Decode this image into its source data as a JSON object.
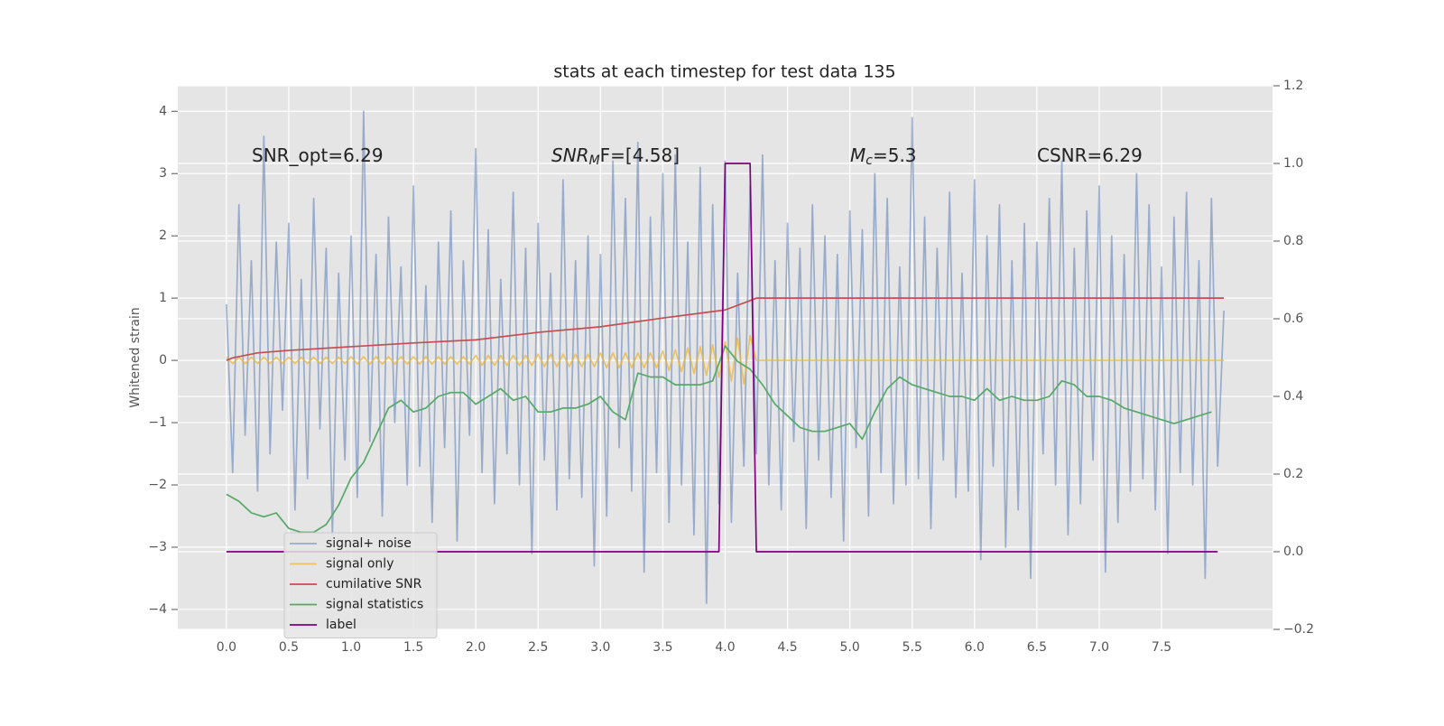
{
  "chart_data": {
    "type": "line",
    "title": "stats at each timestep for test data 135",
    "y_label": "Whitened strain",
    "grid": true,
    "legend": "lower left",
    "xlim": [
      -0.39,
      8.39
    ],
    "ylim": [
      -4.32,
      4.41
    ],
    "y2lim": [
      -0.2,
      1.2
    ],
    "xticks": [
      {
        "value": 0,
        "label": "0.0"
      },
      0.5,
      {
        "value": 1,
        "label": "1.0"
      },
      1.5,
      {
        "value": 2,
        "label": "2.0"
      },
      2.5,
      {
        "value": 3,
        "label": "3.0"
      },
      3.5,
      {
        "value": 4,
        "label": "4.0"
      },
      4.5,
      {
        "value": 5,
        "label": "5.0"
      },
      5.5,
      {
        "value": 6,
        "label": "6.0"
      },
      6.5,
      {
        "value": 7,
        "label": "7.0"
      },
      7.5
    ],
    "yticks": [
      {
        "value": -4,
        "label": "−4"
      },
      {
        "value": -3,
        "label": "−3"
      },
      {
        "value": -2,
        "label": "−2"
      },
      {
        "value": -1,
        "label": "−1"
      },
      0,
      1,
      2,
      3,
      4
    ],
    "y2ticks": [
      {
        "value": -0.2,
        "label": "−0.2"
      },
      {
        "value": 0,
        "label": "0.0"
      },
      0.2,
      0.4,
      0.6,
      0.8,
      {
        "value": 1,
        "label": "1.0"
      },
      1.2
    ],
    "annotations": [
      {
        "parts": [
          "SNR_opt=6.29"
        ]
      },
      {
        "parts": [
          "SNR",
          "M",
          "F=[4.58]"
        ]
      },
      {
        "parts": [
          "M",
          "c",
          "=5.3"
        ]
      },
      {
        "parts": [
          "CSNR=6.29"
        ]
      }
    ],
    "x": [
      0,
      0.05,
      0.1,
      0.15,
      0.2,
      0.25,
      0.3,
      0.35,
      0.4,
      0.45,
      0.5,
      0.55,
      0.6,
      0.65,
      0.7,
      0.75,
      0.8,
      0.85,
      0.9,
      0.95,
      1,
      1.05,
      1.1,
      1.15,
      1.2,
      1.25,
      1.3,
      1.35,
      1.4,
      1.45,
      1.5,
      1.55,
      1.6,
      1.65,
      1.7,
      1.75,
      1.8,
      1.85,
      1.9,
      1.95,
      2,
      2.05,
      2.1,
      2.15,
      2.2,
      2.25,
      2.3,
      2.35,
      2.4,
      2.45,
      2.5,
      2.55,
      2.6,
      2.65,
      2.7,
      2.75,
      2.8,
      2.85,
      2.9,
      2.95,
      3,
      3.05,
      3.1,
      3.15,
      3.2,
      3.25,
      3.3,
      3.35,
      3.4,
      3.45,
      3.5,
      3.55,
      3.6,
      3.65,
      3.7,
      3.75,
      3.8,
      3.85,
      3.9,
      3.95,
      4,
      4.05,
      4.1,
      4.15,
      4.2,
      4.25,
      4.3,
      4.35,
      4.4,
      4.45,
      4.5,
      4.55,
      4.6,
      4.65,
      4.7,
      4.75,
      4.8,
      4.85,
      4.9,
      4.95,
      5,
      5.05,
      5.1,
      5.15,
      5.2,
      5.25,
      5.3,
      5.35,
      5.4,
      5.45,
      5.5,
      5.55,
      5.6,
      5.65,
      5.7,
      5.75,
      5.8,
      5.85,
      5.9,
      5.95,
      6,
      6.05,
      6.1,
      6.15,
      6.2,
      6.25,
      6.3,
      6.35,
      6.4,
      6.45,
      6.5,
      6.55,
      6.6,
      6.65,
      6.7,
      6.75,
      6.8,
      6.85,
      6.9,
      6.95,
      7,
      7.05,
      7.1,
      7.15,
      7.2,
      7.25,
      7.3,
      7.35,
      7.4,
      7.45,
      7.5,
      7.55,
      7.6,
      7.65,
      7.7,
      7.75,
      7.8,
      7.85,
      7.9,
      7.95,
      8
    ],
    "series": [
      {
        "name": "signal+ noise",
        "color": "#4c72b0",
        "opacity": 0.5,
        "axis": "y",
        "values": [
          0.9,
          -1.8,
          2.5,
          -1.2,
          1.6,
          -2.1,
          3.6,
          -1.5,
          1.9,
          -0.8,
          2.2,
          -2.4,
          1.3,
          -1.9,
          2.6,
          -1.1,
          1.8,
          -2.8,
          1.4,
          -1.6,
          2.0,
          -2.2,
          4.0,
          -1.3,
          1.7,
          -2.5,
          2.3,
          -1.0,
          1.5,
          -2.0,
          2.8,
          -1.7,
          1.2,
          -2.6,
          1.9,
          -1.4,
          2.4,
          -2.9,
          1.6,
          -1.2,
          3.4,
          -1.8,
          2.1,
          -2.3,
          1.3,
          -1.5,
          2.7,
          -2.0,
          1.8,
          -3.1,
          2.2,
          -1.6,
          1.4,
          -2.4,
          2.9,
          -1.9,
          1.6,
          -2.2,
          2.0,
          -3.3,
          1.7,
          -2.5,
          3.2,
          -1.4,
          2.6,
          -2.1,
          3.5,
          -3.4,
          2.3,
          -1.8,
          3.0,
          -2.6,
          3.3,
          -2.0,
          1.9,
          -2.8,
          3.1,
          -3.9,
          2.5,
          -2.3,
          3.2,
          -2.6,
          1.4,
          -1.7,
          2.8,
          -1.5,
          3.3,
          -2.0,
          1.6,
          -2.4,
          2.2,
          -1.3,
          1.8,
          -2.7,
          2.5,
          -1.6,
          2.0,
          -2.2,
          1.7,
          -2.9,
          2.4,
          -1.4,
          2.1,
          -2.5,
          3.0,
          -1.8,
          2.6,
          -2.3,
          1.5,
          -2.0,
          3.9,
          -1.9,
          2.3,
          -2.7,
          1.8,
          -1.6,
          2.7,
          -2.2,
          1.4,
          -2.1,
          2.9,
          -3.2,
          2.0,
          -1.7,
          2.5,
          -3.0,
          1.6,
          -2.4,
          2.2,
          -3.5,
          1.9,
          -1.5,
          2.6,
          -2.0,
          3.2,
          -2.8,
          1.8,
          -2.3,
          2.4,
          -1.6,
          2.8,
          -3.4,
          2.0,
          -2.6,
          1.7,
          -2.1,
          3.0,
          -1.9,
          2.5,
          -2.4,
          1.5,
          -3.1,
          2.3,
          -1.8,
          2.7,
          -2.0,
          1.6,
          -3.5,
          2.6,
          -1.7,
          0.8
        ]
      },
      {
        "name": "signal only",
        "color": "#f0b429",
        "opacity": 0.7,
        "axis": "y",
        "values": [
          0.05,
          -0.05,
          0.05,
          -0.05,
          0.05,
          -0.05,
          0.05,
          -0.05,
          0.05,
          -0.05,
          0.05,
          -0.05,
          0.05,
          -0.05,
          0.05,
          -0.05,
          0.05,
          -0.05,
          0.05,
          -0.05,
          0.06,
          -0.06,
          0.06,
          -0.06,
          0.06,
          -0.06,
          0.06,
          -0.06,
          0.06,
          -0.06,
          0.06,
          -0.06,
          0.06,
          -0.06,
          0.06,
          -0.06,
          0.06,
          -0.06,
          0.06,
          -0.06,
          0.08,
          -0.08,
          0.08,
          -0.08,
          0.08,
          -0.08,
          0.08,
          -0.08,
          0.08,
          -0.08,
          0.1,
          -0.1,
          0.1,
          -0.1,
          0.1,
          -0.1,
          0.1,
          -0.1,
          0.1,
          -0.1,
          0.12,
          -0.12,
          0.12,
          -0.12,
          0.12,
          -0.12,
          0.12,
          -0.12,
          0.12,
          -0.12,
          0.15,
          -0.16,
          0.17,
          -0.18,
          0.2,
          -0.21,
          0.22,
          -0.24,
          0.25,
          -0.27,
          0.3,
          -0.33,
          0.36,
          -0.38,
          0.4,
          0,
          0,
          0,
          0,
          0,
          0,
          0,
          0,
          0,
          0,
          0,
          0,
          0,
          0,
          0,
          0,
          0,
          0,
          0,
          0,
          0,
          0,
          0,
          0,
          0,
          0,
          0,
          0,
          0,
          0,
          0,
          0,
          0,
          0,
          0,
          0,
          0,
          0,
          0,
          0,
          0,
          0,
          0,
          0,
          0,
          0,
          0,
          0,
          0,
          0,
          0,
          0,
          0,
          0,
          0,
          0,
          0,
          0,
          0,
          0,
          0,
          0,
          0,
          0,
          0,
          0,
          0,
          0,
          0,
          0,
          0,
          0,
          0,
          0,
          0,
          0
        ]
      },
      {
        "name": "cumilative SNR",
        "color": "#c44e52",
        "axis": "y",
        "x": [
          0,
          0.05,
          0.25,
          0.5,
          1,
          1.5,
          2,
          2.5,
          3,
          3.5,
          4,
          4.2,
          4.25,
          8
        ],
        "values": [
          0,
          0.04,
          0.12,
          0.16,
          0.22,
          0.28,
          0.33,
          0.45,
          0.54,
          0.68,
          0.81,
          0.96,
          1,
          1
        ]
      },
      {
        "name": "signal statistics",
        "color": "#55a868",
        "axis": "y2",
        "x": [
          0,
          0.1,
          0.2,
          0.3,
          0.4,
          0.5,
          0.6,
          0.7,
          0.8,
          0.9,
          1,
          1.1,
          1.2,
          1.3,
          1.4,
          1.5,
          1.6,
          1.7,
          1.8,
          1.9,
          2,
          2.1,
          2.2,
          2.3,
          2.4,
          2.5,
          2.6,
          2.7,
          2.8,
          2.9,
          3,
          3.1,
          3.2,
          3.3,
          3.4,
          3.5,
          3.6,
          3.7,
          3.8,
          3.9,
          4,
          4.1,
          4.2,
          4.3,
          4.4,
          4.5,
          4.6,
          4.7,
          4.8,
          4.9,
          5,
          5.1,
          5.2,
          5.3,
          5.4,
          5.5,
          5.6,
          5.7,
          5.8,
          5.9,
          6,
          6.1,
          6.2,
          6.3,
          6.4,
          6.5,
          6.6,
          6.7,
          6.8,
          6.9,
          7,
          7.1,
          7.2,
          7.3,
          7.4,
          7.5,
          7.6,
          7.7,
          7.8,
          7.9
        ],
        "values": [
          0.148,
          0.13,
          0.1,
          0.09,
          0.1,
          0.06,
          0.05,
          0.05,
          0.07,
          0.12,
          0.19,
          0.23,
          0.3,
          0.37,
          0.39,
          0.36,
          0.37,
          0.4,
          0.41,
          0.41,
          0.38,
          0.4,
          0.42,
          0.39,
          0.4,
          0.36,
          0.36,
          0.37,
          0.37,
          0.38,
          0.4,
          0.36,
          0.34,
          0.46,
          0.45,
          0.45,
          0.43,
          0.43,
          0.43,
          0.44,
          0.53,
          0.49,
          0.47,
          0.43,
          0.38,
          0.35,
          0.32,
          0.31,
          0.31,
          0.32,
          0.33,
          0.29,
          0.36,
          0.42,
          0.45,
          0.43,
          0.42,
          0.41,
          0.4,
          0.4,
          0.39,
          0.42,
          0.39,
          0.4,
          0.39,
          0.39,
          0.4,
          0.44,
          0.43,
          0.4,
          0.4,
          0.39,
          0.37,
          0.36,
          0.35,
          0.34,
          0.33,
          0.34,
          0.35,
          0.36
        ]
      },
      {
        "name": "label",
        "color": "#800080",
        "axis": "y2",
        "x": [
          0,
          3.95,
          4.0,
          4.2,
          4.25,
          7.95
        ],
        "values": [
          0,
          0,
          1,
          1,
          0,
          0
        ]
      }
    ]
  }
}
